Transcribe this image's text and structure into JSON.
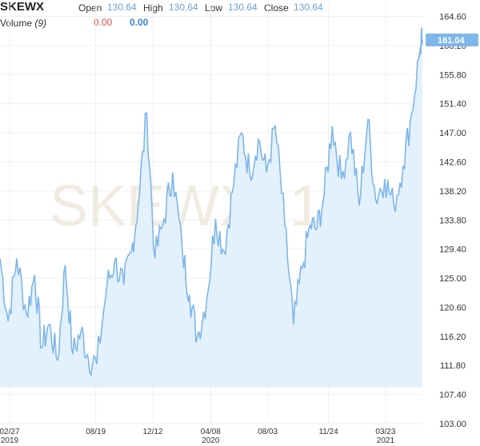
{
  "header": {
    "symbol": "SKEWX",
    "open_label": "Open",
    "open_value": "130.64",
    "high_label": "High",
    "high_value": "130.64",
    "low_label": "Low",
    "low_value": "130.64",
    "close_label": "Close",
    "close_value": "130.64",
    "volume_label": "Volume",
    "volume_period": "(9)",
    "volume_value_1": "0.00",
    "volume_value_2": "0.00"
  },
  "watermark": "SKEWX, 1",
  "last_price_label": "161.04",
  "colors": {
    "line": "#7fb6e8",
    "fill": "#e3f1fd",
    "price_tag": "#7fb6e8",
    "down": "#e0504a",
    "up": "#3b82d6"
  },
  "chart_data": {
    "type": "area",
    "title": "SKEWX",
    "y_ticks": [
      "164.60",
      "160.20",
      "155.80",
      "151.40",
      "147.00",
      "142.60",
      "138.20",
      "133.80",
      "129.40",
      "125.00",
      "120.60",
      "116.20",
      "111.80",
      "107.40",
      "103.00"
    ],
    "ylim": [
      103.0,
      166.6
    ],
    "x_ticks": [
      {
        "label": "02/27",
        "sub": "2019"
      },
      {
        "label": "08/19",
        "sub": ""
      },
      {
        "label": "12/12",
        "sub": ""
      },
      {
        "label": "04/08",
        "sub": "2020"
      },
      {
        "label": "08/03",
        "sub": ""
      },
      {
        "label": "11/24",
        "sub": ""
      },
      {
        "label": "03/23",
        "sub": "2021"
      }
    ],
    "last_value": 161.04,
    "grid": true,
    "series": [
      {
        "x": [
          "2019-02-27",
          "2019-03-15",
          "2019-04-01",
          "2019-04-20",
          "2019-05-06",
          "2019-05-20",
          "2019-06-03",
          "2019-06-20",
          "2019-07-05",
          "2019-07-20",
          "2019-08-05",
          "2019-08-19",
          "2019-09-05",
          "2019-09-25",
          "2019-10-10",
          "2019-10-28",
          "2019-11-12",
          "2019-11-25",
          "2019-12-12",
          "2019-12-28",
          "2020-01-15",
          "2020-02-01",
          "2020-02-20",
          "2020-03-05",
          "2020-03-20",
          "2020-04-08",
          "2020-04-25",
          "2020-05-12",
          "2020-05-28",
          "2020-06-15",
          "2020-07-01",
          "2020-07-18",
          "2020-08-03",
          "2020-08-20",
          "2020-09-08",
          "2020-09-25",
          "2020-10-12",
          "2020-10-28",
          "2020-11-10",
          "2020-11-24",
          "2020-12-10",
          "2020-12-28",
          "2021-01-15",
          "2021-02-01",
          "2021-02-18",
          "2021-03-05",
          "2021-03-23",
          "2021-04-10",
          "2021-04-28",
          "2021-05-15",
          "2021-06-01",
          "2021-06-05"
        ],
        "y": [
          128.0,
          118.5,
          128.0,
          119.5,
          125.5,
          114.5,
          118.0,
          112.5,
          127.0,
          113.5,
          117.0,
          113.0,
          112.0,
          124.0,
          127.5,
          124.0,
          129.0,
          136.0,
          150.0,
          128.0,
          134.0,
          141.0,
          129.0,
          122.5,
          116.0,
          122.0,
          134.0,
          129.0,
          138.0,
          147.0,
          141.0,
          146.0,
          141.0,
          148.0,
          133.0,
          118.0,
          126.5,
          133.0,
          132.5,
          137.5,
          148.0,
          140.0,
          147.0,
          136.0,
          149.0,
          137.0,
          140.0,
          136.0,
          142.0,
          150.0,
          160.0,
          161.04
        ]
      }
    ]
  }
}
